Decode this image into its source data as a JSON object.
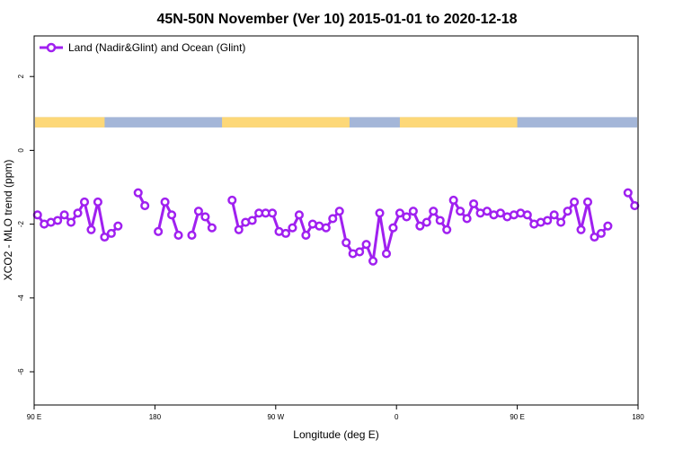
{
  "chart_data": {
    "type": "line",
    "title": "45N-50N November (Ver 10)   2015-01-01 to 2020-12-18",
    "xlabel": "Longitude (deg E)",
    "ylabel": "XCO2 - MLO trend (ppm)",
    "x_range": [
      90,
      270
    ],
    "xlim": [
      90,
      270
    ],
    "ylim": [
      -6.9,
      3.1
    ],
    "x_ticks": [
      {
        "value": 90,
        "label": "90 E"
      },
      {
        "value": 126,
        "label": "180"
      },
      {
        "value": 162,
        "label": "90 W"
      },
      {
        "value": 198,
        "label": "0"
      },
      {
        "value": 234,
        "label": "90 E"
      },
      {
        "value": 270,
        "label": "180"
      }
    ],
    "y_ticks": [
      {
        "value": 2,
        "label": "2"
      },
      {
        "value": 0,
        "label": "0"
      },
      {
        "value": -2,
        "label": "-2"
      },
      {
        "value": -4,
        "label": "-4"
      },
      {
        "value": -6,
        "label": "-6"
      }
    ],
    "grid": false,
    "legend_position": "top-left",
    "series_color": "#a020f0",
    "land_color": "#fdd878",
    "ocean_color": "#a4b6d8",
    "mask_band": {
      "y_top": 0.9,
      "y_bottom": 0.62
    },
    "land_spans": [
      [
        90,
        111
      ],
      [
        146,
        184
      ],
      [
        199,
        234
      ]
    ],
    "series": [
      {
        "name": "Land (Nadir&Glint) and Ocean (Glint)",
        "segments": [
          [
            [
              91,
              -1.75
            ],
            [
              93,
              -2.0
            ],
            [
              95,
              -1.95
            ],
            [
              97,
              -1.9
            ],
            [
              99,
              -1.75
            ],
            [
              101,
              -1.95
            ],
            [
              103,
              -1.7
            ],
            [
              105,
              -1.4
            ],
            [
              107,
              -2.15
            ],
            [
              109,
              -1.4
            ],
            [
              111,
              -2.35
            ],
            [
              113,
              -2.25
            ],
            [
              115,
              -2.05
            ]
          ],
          [
            [
              121,
              -1.15
            ],
            [
              123,
              -1.5
            ]
          ],
          [
            [
              127,
              -2.2
            ],
            [
              129,
              -1.4
            ],
            [
              131,
              -1.75
            ],
            [
              133,
              -2.3
            ]
          ],
          [
            [
              137,
              -2.3
            ],
            [
              139,
              -1.65
            ],
            [
              141,
              -1.8
            ],
            [
              143,
              -2.1
            ]
          ],
          [
            [
              149,
              -1.35
            ],
            [
              151,
              -2.15
            ],
            [
              153,
              -1.95
            ],
            [
              155,
              -1.9
            ],
            [
              157,
              -1.7
            ],
            [
              159,
              -1.7
            ],
            [
              161,
              -1.7
            ],
            [
              163,
              -2.2
            ],
            [
              165,
              -2.25
            ],
            [
              167,
              -2.1
            ],
            [
              169,
              -1.75
            ],
            [
              171,
              -2.3
            ],
            [
              173,
              -2.0
            ],
            [
              175,
              -2.05
            ],
            [
              177,
              -2.1
            ],
            [
              179,
              -1.85
            ],
            [
              181,
              -1.65
            ],
            [
              183,
              -2.5
            ],
            [
              185,
              -2.8
            ],
            [
              187,
              -2.75
            ],
            [
              189,
              -2.55
            ],
            [
              191,
              -3.0
            ],
            [
              193,
              -1.7
            ],
            [
              195,
              -2.8
            ],
            [
              197,
              -2.1
            ],
            [
              199,
              -1.7
            ],
            [
              201,
              -1.8
            ],
            [
              203,
              -1.65
            ],
            [
              205,
              -2.05
            ],
            [
              207,
              -1.95
            ],
            [
              209,
              -1.65
            ],
            [
              211,
              -1.9
            ],
            [
              213,
              -2.15
            ],
            [
              215,
              -1.35
            ],
            [
              217,
              -1.65
            ],
            [
              219,
              -1.85
            ],
            [
              221,
              -1.45
            ],
            [
              223,
              -1.7
            ],
            [
              225,
              -1.65
            ],
            [
              227,
              -1.75
            ],
            [
              229,
              -1.7
            ],
            [
              231,
              -1.8
            ],
            [
              233,
              -1.75
            ],
            [
              235,
              -1.7
            ],
            [
              237,
              -1.75
            ],
            [
              239,
              -2.0
            ],
            [
              241,
              -1.95
            ],
            [
              243,
              -1.9
            ],
            [
              245,
              -1.75
            ],
            [
              247,
              -1.95
            ],
            [
              249,
              -1.65
            ],
            [
              251,
              -1.4
            ],
            [
              253,
              -2.15
            ],
            [
              255,
              -1.4
            ],
            [
              257,
              -2.35
            ],
            [
              259,
              -2.25
            ],
            [
              261,
              -2.05
            ]
          ],
          [
            [
              267,
              -1.15
            ],
            [
              269,
              -1.5
            ]
          ]
        ]
      }
    ]
  }
}
